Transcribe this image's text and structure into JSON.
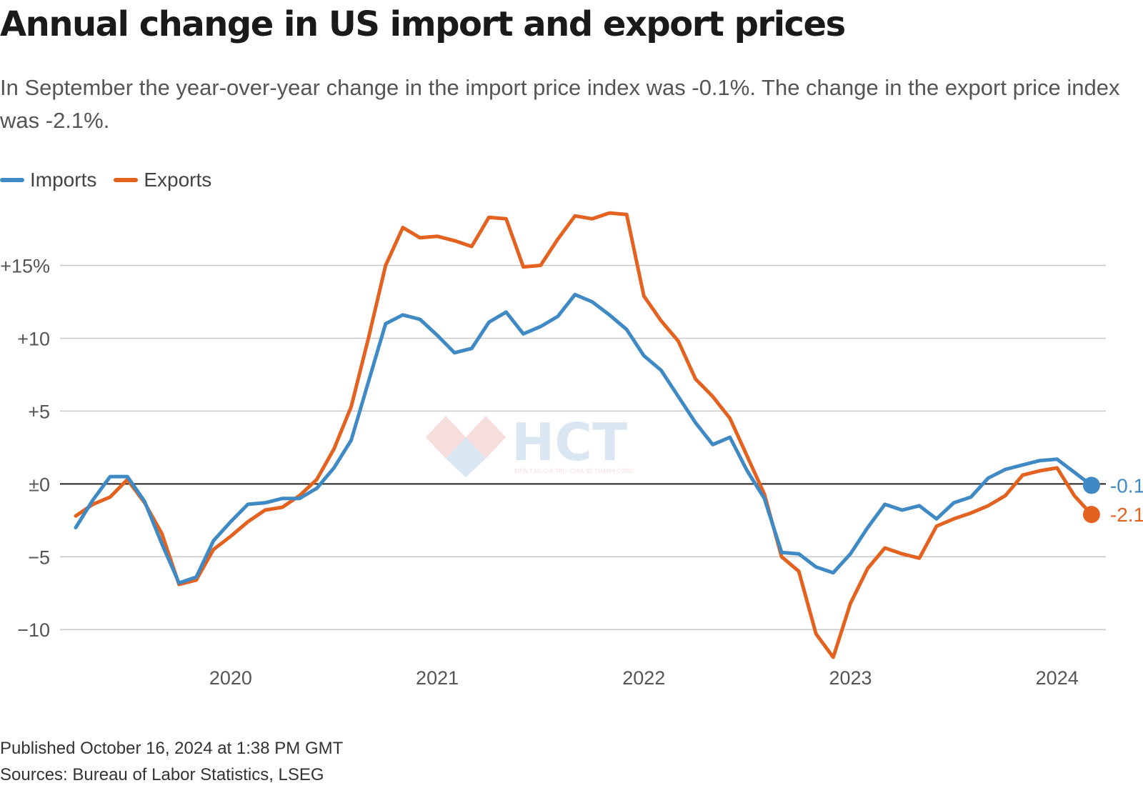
{
  "header": {
    "title": "Annual change in US import and export prices",
    "subtitle": "In September the year-over-year change in the import price index was -0.1%. The change in the export price index was -2.1%."
  },
  "footer": {
    "published": "Published October 16, 2024 at 1:38 PM GMT",
    "sources": "Sources: Bureau of Labor Statistics, LSEG"
  },
  "watermark": {
    "text": "HCT",
    "tagline": "KIẾN TẠO GIÁ TRỊ - CHIA SẺ THÀNH CÔNG"
  },
  "chart_data": {
    "type": "line",
    "title": "Annual change in US import and export prices",
    "xlabel": "",
    "ylabel": "",
    "ylim": [
      -12,
      18.9
    ],
    "x_start": "2019-09",
    "x_tick_labels": [
      "2020",
      "2021",
      "2022",
      "2023",
      "2024"
    ],
    "y_ticks": [
      {
        "value": 15,
        "label": "+15%"
      },
      {
        "value": 10,
        "label": "+10"
      },
      {
        "value": 5,
        "label": "+5"
      },
      {
        "value": 0,
        "label": "±0"
      },
      {
        "value": -5,
        "label": "−5"
      },
      {
        "value": -10,
        "label": "−10"
      }
    ],
    "grid": true,
    "legend": "top-left",
    "series": [
      {
        "name": "Imports",
        "color": "#3f8ac4",
        "end_label": "-0.1",
        "values": [
          -3.0,
          -1.1,
          0.5,
          0.5,
          -1.2,
          -4.1,
          -6.8,
          -6.4,
          -3.9,
          -2.6,
          -1.4,
          -1.3,
          -1.0,
          -1.0,
          -0.3,
          1.1,
          3.0,
          7.0,
          11.0,
          11.6,
          11.3,
          10.2,
          9.0,
          9.3,
          11.1,
          11.8,
          10.3,
          10.8,
          11.5,
          13.0,
          12.5,
          11.6,
          10.6,
          8.8,
          7.8,
          6.0,
          4.2,
          2.7,
          3.2,
          0.9,
          -1.0,
          -4.7,
          -4.8,
          -5.7,
          -6.1,
          -4.8,
          -3.0,
          -1.4,
          -1.8,
          -1.5,
          -2.4,
          -1.3,
          -0.9,
          0.4,
          1.0,
          1.3,
          1.6,
          1.7,
          0.8,
          -0.1
        ]
      },
      {
        "name": "Exports",
        "color": "#e4621f",
        "end_label": "-2.1",
        "values": [
          -2.2,
          -1.4,
          -0.9,
          0.3,
          -1.3,
          -3.4,
          -6.9,
          -6.6,
          -4.5,
          -3.6,
          -2.6,
          -1.8,
          -1.6,
          -0.8,
          0.3,
          2.4,
          5.3,
          10.0,
          15.0,
          17.6,
          16.9,
          17.0,
          16.7,
          16.3,
          18.3,
          18.2,
          14.9,
          15.0,
          16.8,
          18.4,
          18.2,
          18.6,
          18.5,
          12.9,
          11.2,
          9.8,
          7.2,
          6.0,
          4.5,
          1.9,
          -0.7,
          -5.0,
          -6.0,
          -10.3,
          -11.9,
          -8.2,
          -5.8,
          -4.4,
          -4.8,
          -5.1,
          -2.9,
          -2.4,
          -2.0,
          -1.5,
          -0.8,
          0.6,
          0.9,
          1.1,
          -0.8,
          -2.1
        ]
      }
    ]
  }
}
